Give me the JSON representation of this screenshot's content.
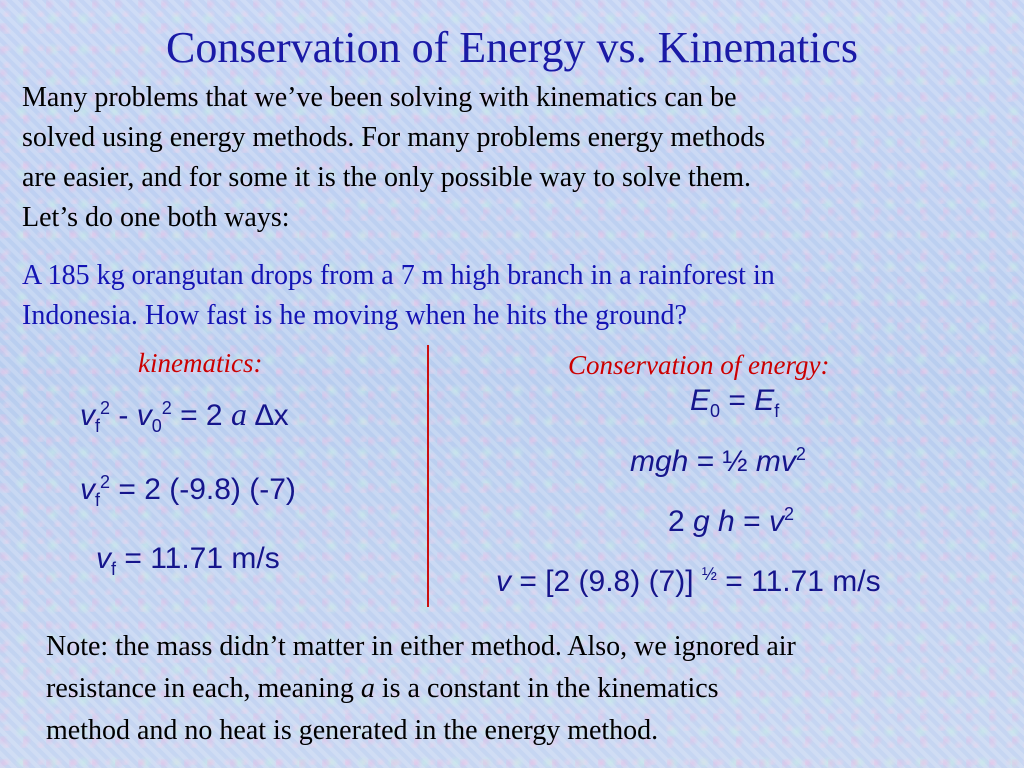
{
  "title": "Conservation of Energy vs. Kinematics",
  "intro": {
    "lines": [
      "Many problems that we’ve been solving with kinematics can be",
      "solved using energy methods.  For many problems energy methods",
      "are easier, and for some it is the only possible way to solve them.",
      "Let’s do one both ways:"
    ]
  },
  "problem": {
    "lines": [
      "A 185 kg orangutan drops from a 7 m high branch in a rainforest in",
      "Indonesia.  How fast is he moving when he hits the ground?"
    ]
  },
  "kinematics": {
    "heading": "kinematics:",
    "eq1": {
      "v": "v",
      "f": "f",
      "sq": "2",
      "minus": " - ",
      "v0": "v",
      "zero": "0",
      "sq2": "2",
      "rhs": " = 2 ",
      "a": "a",
      "dx": " ∆x"
    },
    "eq2": {
      "v": "v",
      "f": "f",
      "sq": "2",
      "rhs": " = 2 (-9.8) (-7)"
    },
    "eq3": {
      "v": "v",
      "f": "f",
      "rhs": " = 11.71 m/s"
    }
  },
  "energy": {
    "heading": "Conservation of energy:",
    "eq1": {
      "E": "E",
      "zero": "0",
      "eq": " = ",
      "E2": "E",
      "f": "f"
    },
    "eq2": {
      "lhs": "mgh",
      "mid": " = ½ ",
      "mv": "mv",
      "sq": "2"
    },
    "eq3": {
      "two": "2 ",
      "g": "g",
      "h": " h",
      "eq": " = ",
      "v": "v",
      "sq": "2"
    },
    "eq4": {
      "v": "v",
      "mid": " = [2 (9.8) (7)] ",
      "half": "½",
      "rhs": "  = 11.71 m/s"
    }
  },
  "note": {
    "l1": "Note: the mass didn’t matter in either method.  Also, we ignored air",
    "l2a": "resistance in each, meaning ",
    "a": "a",
    "l2b": "  is a constant in the kinematics",
    "l3": "method and no heat is generated in the energy method."
  },
  "colors": {
    "title": "#1a1aa6",
    "problem": "#1414b4",
    "heading": "#cc0000",
    "equation": "#15158c",
    "divider": "#cc1010"
  }
}
